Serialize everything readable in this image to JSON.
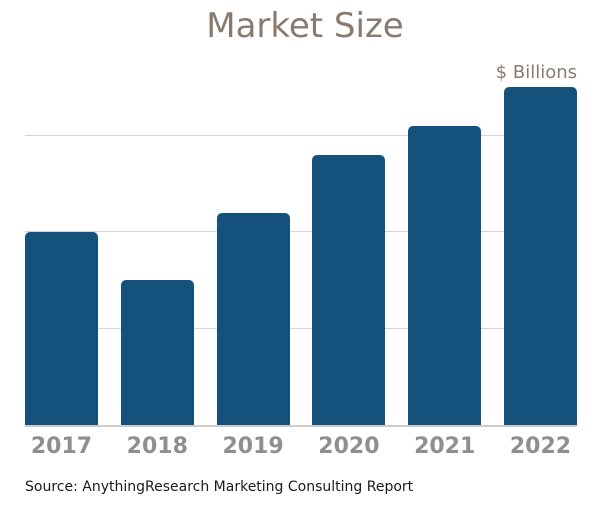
{
  "title": "Market Size",
  "unit_label": "$ Billions",
  "source": "Source: AnythingResearch Marketing Consulting Report",
  "colors": {
    "background": "#ffffff",
    "bar": "#14517c",
    "title": "#8a7a6d",
    "unit": "#8a7a6d",
    "xlabel": "#8f8f8f",
    "gridline": "#d4d4d4",
    "baseline": "#cbcbcb",
    "source_text": "#1a1a1a"
  },
  "chart_data": {
    "type": "bar",
    "title": "Market Size",
    "unit": "$ Billions",
    "categories": [
      "2017",
      "2018",
      "2019",
      "2020",
      "2021",
      "2022"
    ],
    "values": [
      50,
      37.5,
      55,
      70,
      77.5,
      87.5
    ],
    "xlabel": "",
    "ylabel": "",
    "ylim": [
      0,
      100
    ],
    "gridlines": [
      25,
      50,
      75
    ],
    "grid": true,
    "legend": false,
    "y_tick_labels_shown": false
  }
}
